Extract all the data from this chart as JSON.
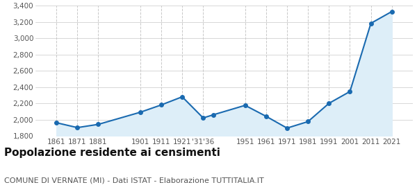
{
  "years_positions": [
    1861,
    1871,
    1881,
    1901,
    1911,
    1921,
    1931,
    1936,
    1951,
    1961,
    1971,
    1981,
    1991,
    2001,
    2011,
    2021
  ],
  "x_labels": [
    "1861",
    "1871",
    "1881",
    "1901",
    "1911",
    "1921",
    "'31'36",
    "1951",
    "1961",
    "1971",
    "1981",
    "1991",
    "2001",
    "2011",
    "2021"
  ],
  "population": [
    1961,
    1901,
    1941,
    2090,
    2180,
    2280,
    2020,
    2060,
    2175,
    2040,
    1895,
    1975,
    2200,
    2345,
    3185,
    3330
  ],
  "line_color": "#1a6ab0",
  "fill_color": "#ddeef8",
  "marker_color": "#1a6ab0",
  "background_color": "#ffffff",
  "grid_color": "#c8c8c8",
  "ylim": [
    1800,
    3400
  ],
  "yticks": [
    1800,
    2000,
    2200,
    2400,
    2600,
    2800,
    3000,
    3200,
    3400
  ],
  "title": "Popolazione residente ai censimenti",
  "subtitle": "COMUNE DI VERNATE (MI) - Dati ISTAT - Elaborazione TUTTITALIA.IT",
  "title_fontsize": 11,
  "subtitle_fontsize": 8
}
